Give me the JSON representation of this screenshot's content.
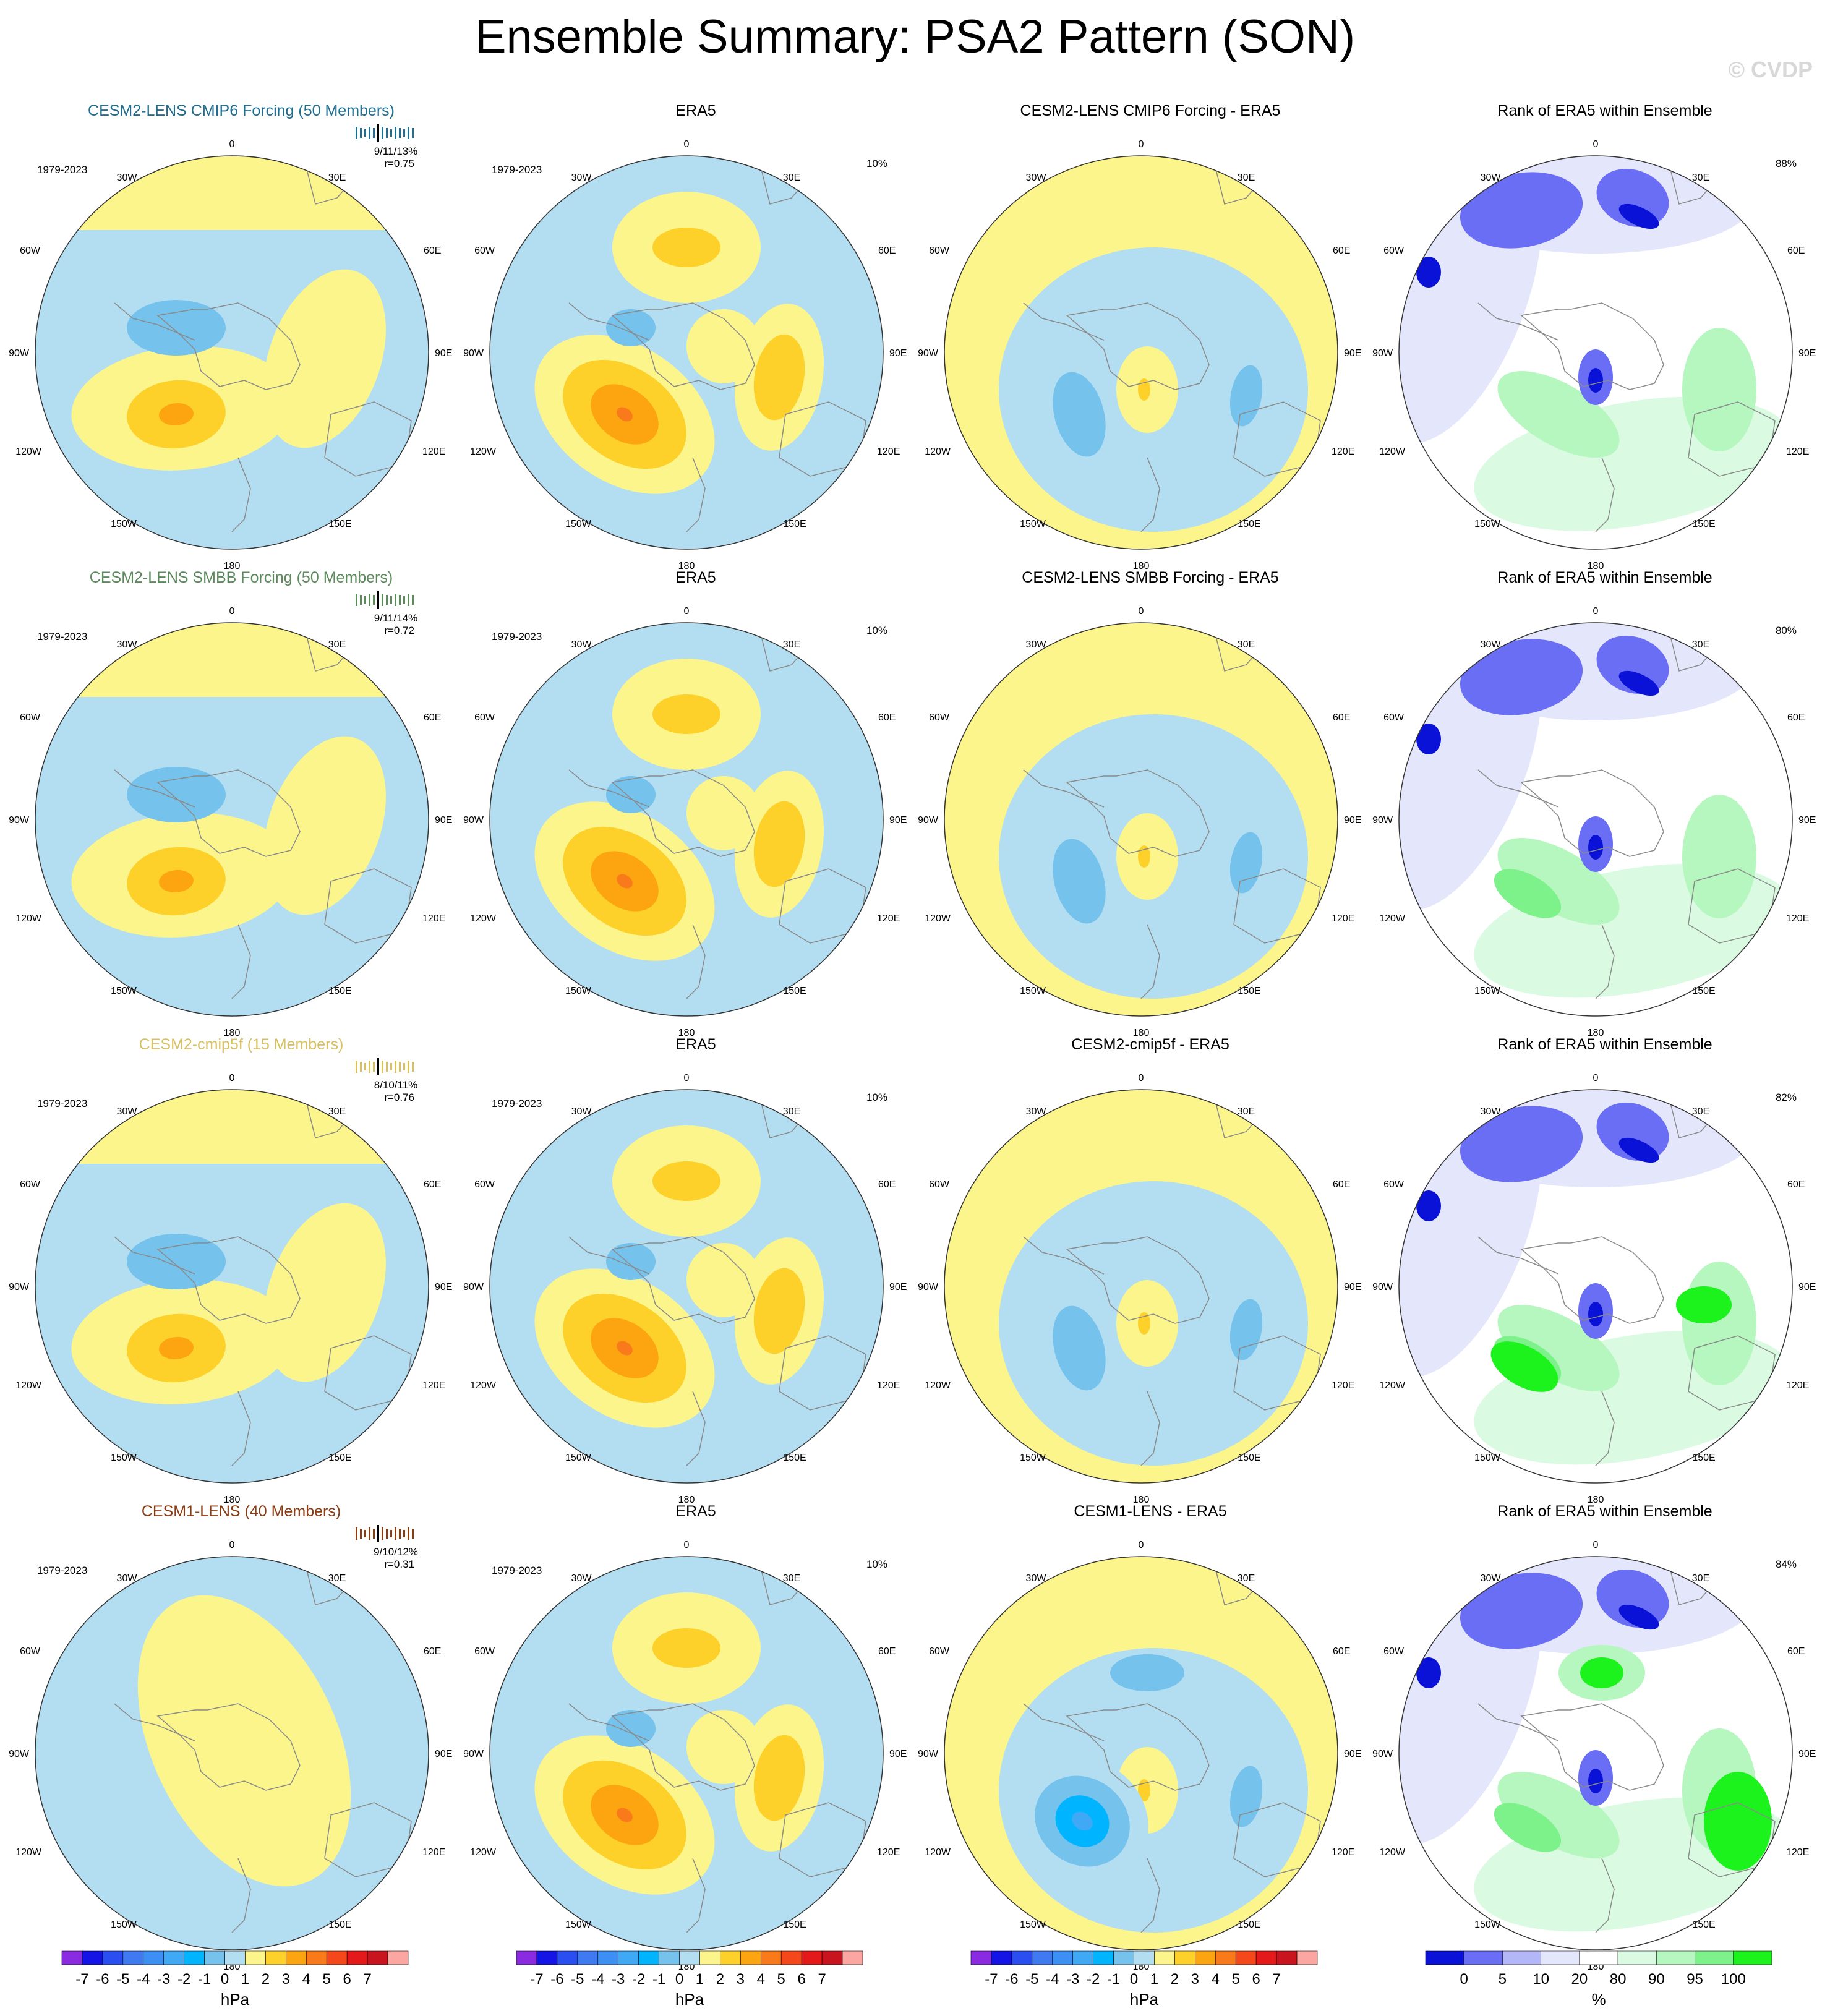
{
  "title": "Ensemble Summary: PSA2 Pattern (SON)",
  "watermark": "© CVDP",
  "colors": {
    "yellow": "#fbf58c",
    "lightblue": "#b3def2",
    "orange": "#fdd12a",
    "darkorange": "#fca510",
    "red": "#f97a1a",
    "blue": "#75c2ec",
    "midblue": "#3fa9f5",
    "deepblue": "#00b4ff",
    "lavender": "#e4e6fb",
    "lightpurple": "#b3b6f7",
    "purple": "#6a6ef5",
    "navy": "#0a12d8",
    "mint": "#dafbe2",
    "lightgreen": "#b5f7be",
    "green": "#7df28a",
    "brightgreen": "#1cf21c",
    "coast": "#8a8a8a"
  },
  "rows": [
    {
      "model_title": "CESM2-LENS CMIP6 Forcing (50 Members)",
      "model_color": "#1f6e91",
      "stats": "9/11/13%",
      "corr": "r=0.75",
      "diff_title": "CESM2-LENS CMIP6 Forcing - ERA5",
      "rank_pct": "88%"
    },
    {
      "model_title": "CESM2-LENS SMBB Forcing (50 Members)",
      "model_color": "#5b8a5b",
      "stats": "9/11/14%",
      "corr": "r=0.72",
      "diff_title": "CESM2-LENS SMBB Forcing - ERA5",
      "rank_pct": "80%"
    },
    {
      "model_title": "CESM2-cmip5f (15 Members)",
      "model_color": "#d8c060",
      "stats": "8/10/11%",
      "corr": "r=0.76",
      "diff_title": "CESM2-cmip5f - ERA5",
      "rank_pct": "82%"
    },
    {
      "model_title": "CESM1-LENS (40 Members)",
      "model_color": "#8a3c12",
      "stats": "9/10/12%",
      "corr": "r=0.31",
      "diff_title": "CESM1-LENS - ERA5",
      "rank_pct": "84%"
    }
  ],
  "era5_title": "ERA5",
  "era5_pct": "10%",
  "period": "1979-2023",
  "rank_title": "Rank of ERA5 within Ensemble",
  "lon_labels": {
    "l0": "0",
    "l30e": "30E",
    "l60e": "60E",
    "l90e": "90E",
    "l120e": "120E",
    "l150e": "150E",
    "l180": "180",
    "l150w": "150W",
    "l120w": "120W",
    "l90w": "90W",
    "l60w": "60W",
    "l30w": "30W"
  },
  "colorbar_hpa": {
    "ticks": [
      "-7",
      "-6",
      "-5",
      "-4",
      "-3",
      "-2",
      "-1",
      "0",
      "1",
      "2",
      "3",
      "4",
      "5",
      "6",
      "7"
    ],
    "unit": "hPa",
    "colors": [
      "#8a2be2",
      "#1414e6",
      "#2a4ef0",
      "#3f7af0",
      "#3c8ff3",
      "#3fa9f5",
      "#00b4ff",
      "#75c2ec",
      "#b3def2",
      "#fbf58c",
      "#fdd12a",
      "#fca510",
      "#f97a1a",
      "#f4481a",
      "#e41a1a",
      "#c8141e",
      "#fba6a0"
    ]
  },
  "colorbar_pct": {
    "ticks": [
      "0",
      "5",
      "10",
      "20",
      "80",
      "90",
      "95",
      "100"
    ],
    "unit": "%",
    "colors": [
      "#0a12d8",
      "#6a6ef5",
      "#b3b6f7",
      "#e4e6fb",
      "#ffffff",
      "#dafbe2",
      "#b5f7be",
      "#7df28a",
      "#1cf21c"
    ]
  }
}
